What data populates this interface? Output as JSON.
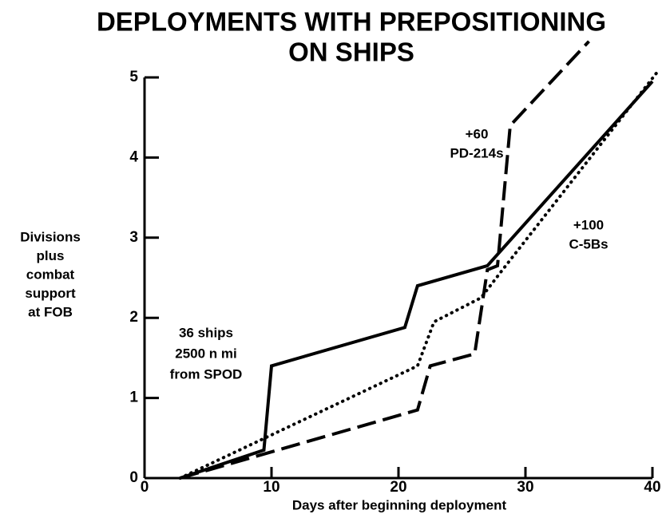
{
  "chart_data": {
    "type": "line",
    "title": [
      "DEPLOYMENTS WITH PREPOSITIONING",
      "ON SHIPS"
    ],
    "y_label": [
      "Divisions",
      "plus",
      "combat",
      "support",
      "at FOB"
    ],
    "x_label": "Days after beginning deployment",
    "annotations": [
      [
        "+60",
        "PD-214s"
      ],
      [
        "+100",
        "C-5Bs"
      ],
      [
        "36 ships",
        "2500 n mi",
        "from SPOD"
      ]
    ],
    "xlim": [
      0,
      40
    ],
    "xticks": [
      0,
      10,
      20,
      30,
      40
    ],
    "ylim": [
      0,
      5
    ],
    "yticks": [
      0,
      1,
      2,
      3,
      4,
      5
    ],
    "series": [
      {
        "color": "#000000",
        "line_style": "solid",
        "x": [
          2.8,
          9.4,
          10,
          20.5,
          21.5,
          27,
          40
        ],
        "values": [
          0,
          0.35,
          1.4,
          1.88,
          2.4,
          2.65,
          4.95
        ]
      },
      {
        "color": "#000000",
        "line_style": "dashed",
        "x": [
          2.8,
          21.5,
          22.5,
          26,
          27,
          27.8,
          28.8,
          35
        ],
        "values": [
          0,
          0.85,
          1.4,
          1.55,
          2.6,
          2.65,
          4.4,
          5.45
        ]
      },
      {
        "color": "#000000",
        "line_style": "dotted",
        "x": [
          2.8,
          21.5,
          22.8,
          26.5,
          28.2,
          40.3
        ],
        "values": [
          0,
          1.4,
          1.95,
          2.25,
          2.6,
          5.05
        ]
      }
    ]
  }
}
